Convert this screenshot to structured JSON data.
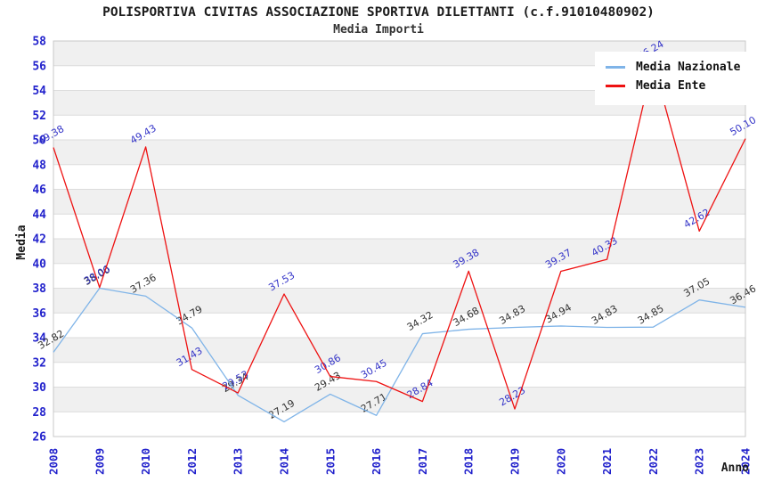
{
  "chart_data": {
    "type": "line",
    "title": "POLISPORTIVA CIVITAS ASSOCIAZIONE SPORTIVA DILETTANTI (c.f.91010480902)",
    "subtitle": "Media Importi",
    "xlabel": "Anno",
    "ylabel": "Media",
    "categories": [
      "2008",
      "2009",
      "2010",
      "2012",
      "2013",
      "2014",
      "2015",
      "2016",
      "2017",
      "2018",
      "2019",
      "2020",
      "2021",
      "2022",
      "2023",
      "2024"
    ],
    "series": [
      {
        "name": "Media Nazionale",
        "color": "#7fb4e8",
        "label_color": "#333333",
        "values": [
          32.82,
          38.0,
          37.36,
          34.79,
          29.34,
          27.19,
          29.43,
          27.71,
          34.32,
          34.68,
          34.83,
          34.94,
          34.83,
          34.85,
          37.05,
          36.46
        ]
      },
      {
        "name": "Media Ente",
        "color": "#ee1111",
        "label_color": "#3434c8",
        "values": [
          49.38,
          38.06,
          49.43,
          31.43,
          29.53,
          37.53,
          30.86,
          30.45,
          28.84,
          39.38,
          28.23,
          39.37,
          40.33,
          56.24,
          42.62,
          50.1
        ]
      }
    ],
    "ylim": [
      26,
      58
    ],
    "yticks": [
      26,
      28,
      30,
      32,
      34,
      36,
      38,
      40,
      42,
      44,
      46,
      48,
      50,
      52,
      54,
      56,
      58
    ],
    "grid": true,
    "stripes": true,
    "legend_position": "top-right",
    "colors": {
      "axis_tick": "#2222cc",
      "axis_title": "#1a1a1a",
      "gridline": "#dcdcdc",
      "stripe": "#f0f0f0",
      "plot_border": "#c8c8c8"
    }
  }
}
